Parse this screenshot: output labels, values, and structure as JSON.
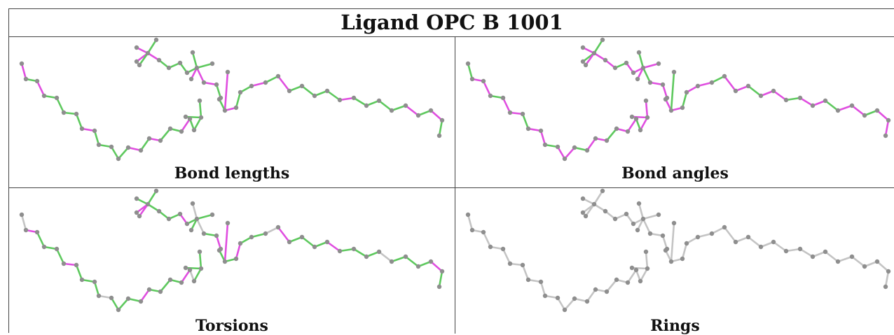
{
  "title": "Ligand OPC B 1001",
  "panels": [
    {
      "label": "Bond lengths",
      "mode": "bonds"
    },
    {
      "label": "Bond angles",
      "mode": "angles"
    },
    {
      "label": "Torsions",
      "mode": "torsions"
    },
    {
      "label": "Rings",
      "mode": "rings"
    }
  ],
  "colors": {
    "green": "#5ec95e",
    "magenta": "#e04ee0",
    "grey_bond": "#c4c4c4",
    "atom": "#8e8e8e",
    "border": "#444444"
  }
}
